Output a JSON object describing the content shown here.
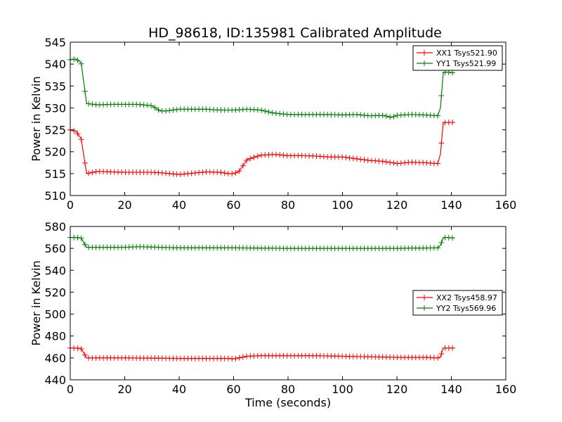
{
  "chart_data": [
    {
      "type": "line",
      "title": "HD_98618, ID:135981 Calibrated Amplitude",
      "xlabel": "",
      "ylabel": "Power in Kelvin",
      "xlim": [
        0,
        160
      ],
      "ylim": [
        510,
        545
      ],
      "xticks": [
        "0",
        "20",
        "40",
        "60",
        "80",
        "100",
        "120",
        "140",
        "160"
      ],
      "yticks": [
        "510",
        "515",
        "520",
        "525",
        "530",
        "535",
        "540",
        "545"
      ],
      "legend_position": "top-right",
      "series": [
        {
          "name": "XX1 Tsys521.90",
          "color": "#ff0000",
          "x": [
            0,
            2,
            4,
            6,
            10,
            15,
            20,
            25,
            30,
            35,
            40,
            45,
            50,
            55,
            58,
            60,
            62,
            65,
            70,
            75,
            80,
            85,
            90,
            95,
            100,
            105,
            110,
            115,
            120,
            125,
            130,
            135,
            136,
            137,
            138,
            141
          ],
          "y": [
            525,
            524.7,
            523,
            515,
            515.5,
            515.4,
            515.3,
            515.3,
            515.3,
            515.1,
            514.8,
            515.1,
            515.4,
            515.3,
            515,
            515,
            515.5,
            518.2,
            519.2,
            519.4,
            519.1,
            519.1,
            519,
            518.8,
            518.8,
            518.4,
            518,
            517.8,
            517.3,
            517.6,
            517.5,
            517.3,
            519.5,
            526.6,
            526.7,
            526.7
          ]
        },
        {
          "name": "YY1 Tsys521.99",
          "color": "#008000",
          "x": [
            0,
            2,
            4,
            6,
            10,
            15,
            20,
            25,
            30,
            33,
            35,
            40,
            45,
            50,
            55,
            60,
            65,
            70,
            75,
            80,
            85,
            90,
            95,
            100,
            105,
            110,
            115,
            118,
            120,
            125,
            130,
            135,
            136,
            137,
            138,
            141
          ],
          "y": [
            541,
            541.2,
            540.3,
            531,
            530.7,
            530.8,
            530.8,
            530.8,
            530.5,
            529.3,
            529.3,
            529.7,
            529.7,
            529.7,
            529.5,
            529.5,
            529.7,
            529.5,
            528.8,
            528.5,
            528.5,
            528.5,
            528.5,
            528.4,
            528.5,
            528.2,
            528.3,
            527.8,
            528.3,
            528.5,
            528.4,
            528.2,
            530,
            538,
            538.2,
            538
          ]
        }
      ]
    },
    {
      "type": "line",
      "title": "",
      "xlabel": "Time (seconds)",
      "ylabel": "Power in Kelvin",
      "xlim": [
        0,
        160
      ],
      "ylim": [
        440,
        580
      ],
      "xticks": [
        "0",
        "20",
        "40",
        "60",
        "80",
        "100",
        "120",
        "140",
        "160"
      ],
      "yticks": [
        "440",
        "460",
        "480",
        "500",
        "520",
        "540",
        "560",
        "580"
      ],
      "legend_position": "center-right",
      "series": [
        {
          "name": "XX2 Tsys458.97",
          "color": "#ff0000",
          "x": [
            0,
            2,
            4,
            6,
            20,
            40,
            58,
            60,
            62,
            65,
            70,
            80,
            90,
            100,
            110,
            120,
            130,
            135,
            136,
            137,
            138,
            141
          ],
          "y": [
            469,
            469,
            468.5,
            460,
            460,
            459.5,
            459.5,
            459,
            460,
            461.5,
            462,
            462,
            462,
            461.5,
            461,
            460.5,
            460.5,
            460,
            461,
            469,
            469,
            469
          ]
        },
        {
          "name": "YY2 Tsys569.96",
          "color": "#008000",
          "x": [
            0,
            2,
            4,
            6,
            20,
            25,
            40,
            60,
            80,
            100,
            120,
            135,
            136,
            137,
            138,
            141
          ],
          "y": [
            570,
            570,
            569.5,
            561,
            561,
            561.5,
            560.5,
            560.5,
            560,
            560,
            560,
            560.5,
            563,
            569.5,
            570,
            569.5
          ]
        }
      ]
    }
  ]
}
